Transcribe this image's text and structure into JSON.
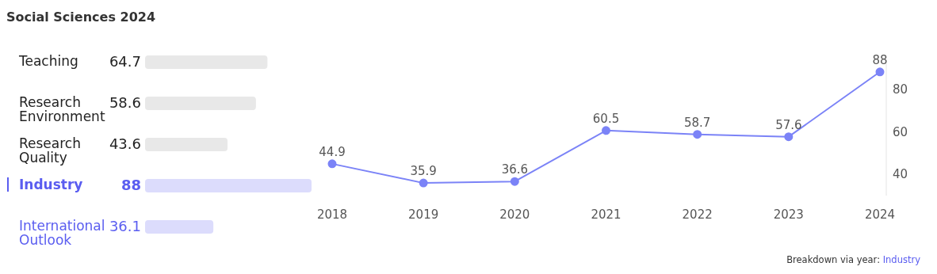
{
  "chart_data": [
    {
      "type": "bar",
      "title": "Social Sciences 2024",
      "orientation": "horizontal",
      "categories": [
        "Teaching",
        "Research Environment",
        "Research Quality",
        "Industry",
        "International Outlook"
      ],
      "values": [
        64.7,
        58.6,
        43.6,
        88,
        36.1
      ],
      "colors": [
        "#e8e8e8",
        "#e8e8e8",
        "#e8e8e8",
        "#dcdcfc",
        "#dcdcfc"
      ],
      "data_labels": true
    },
    {
      "type": "line",
      "categories": [
        "2018",
        "2019",
        "2020",
        "2021",
        "2022",
        "2023",
        "2024"
      ],
      "series": [
        {
          "color": "#7b83f7",
          "values": [
            44.9,
            35.9,
            36.6,
            60.5,
            58.7,
            57.6,
            88
          ]
        }
      ],
      "ylim": [
        30,
        92
      ],
      "yticks": [
        40,
        60,
        80
      ],
      "data_labels": true,
      "marker": "circle",
      "grid": false,
      "legend": false,
      "annotations": [
        "Breakdown via year: ",
        "Industry"
      ]
    }
  ]
}
